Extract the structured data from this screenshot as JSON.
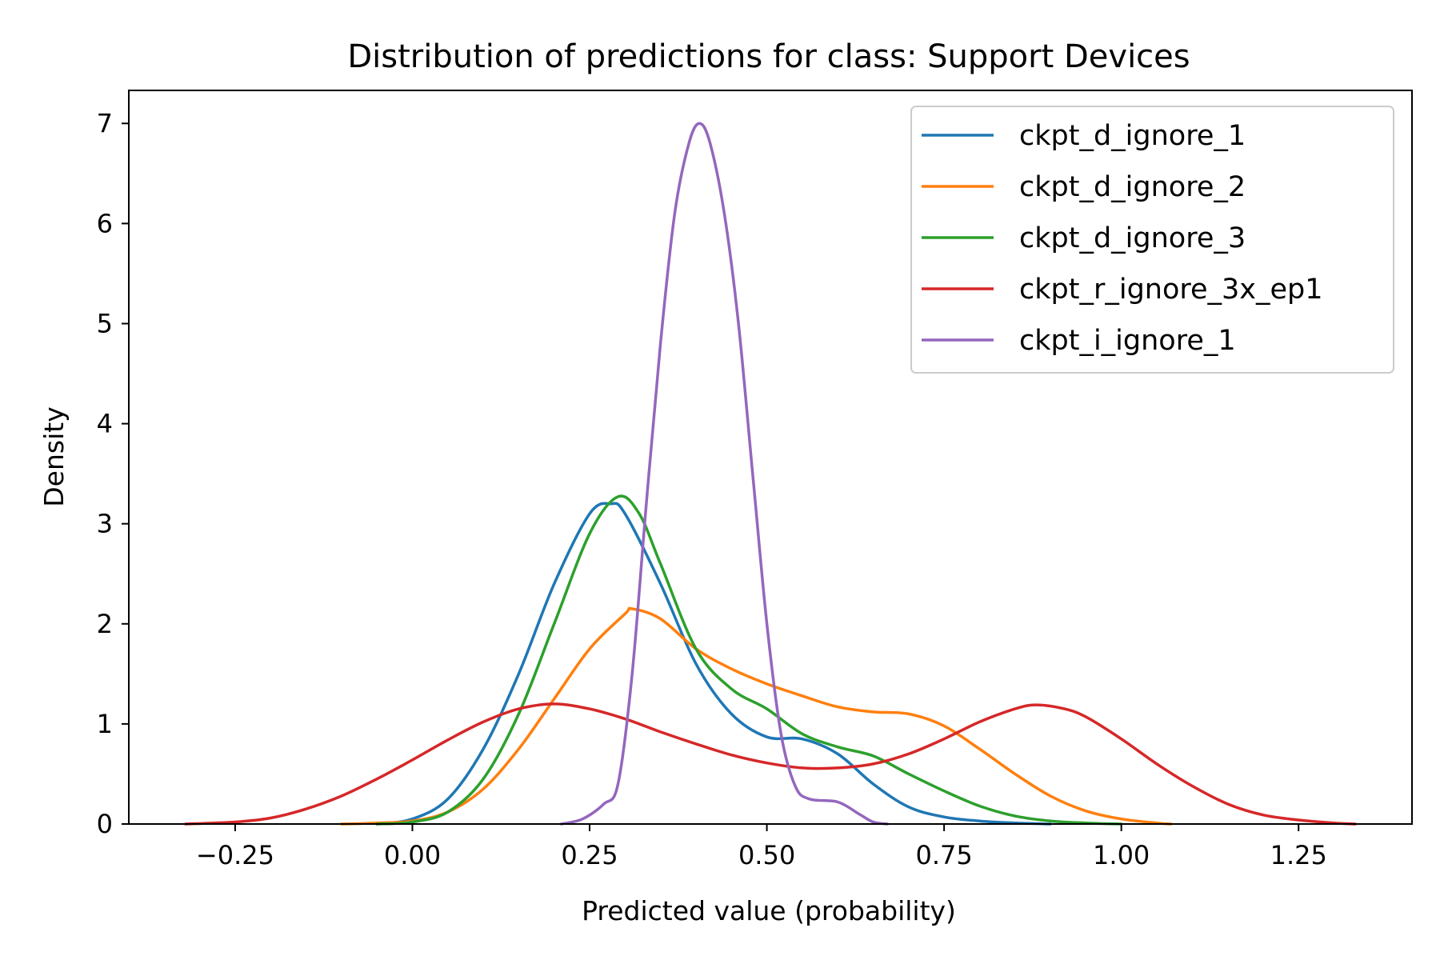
{
  "chart_data": {
    "type": "line",
    "title": "Distribution of predictions for class: Support Devices",
    "xlabel": "Predicted value (probability)",
    "ylabel": "Density",
    "xlim": [
      -0.4,
      1.41
    ],
    "ylim": [
      0,
      7.33
    ],
    "xticks": [
      -0.25,
      0.0,
      0.25,
      0.5,
      0.75,
      1.0,
      1.25
    ],
    "xtick_labels": [
      "−0.25",
      "0.00",
      "0.25",
      "0.50",
      "0.75",
      "1.00",
      "1.25"
    ],
    "yticks": [
      0,
      1,
      2,
      3,
      4,
      5,
      6,
      7
    ],
    "ytick_labels": [
      "0",
      "1",
      "2",
      "3",
      "4",
      "5",
      "6",
      "7"
    ],
    "grid": false,
    "legend_position": "top-right",
    "series": [
      {
        "name": "ckpt_d_ignore_1",
        "color": "#1f77b4",
        "points": [
          [
            -0.05,
            0.0
          ],
          [
            0.0,
            0.05
          ],
          [
            0.05,
            0.25
          ],
          [
            0.1,
            0.75
          ],
          [
            0.15,
            1.5
          ],
          [
            0.2,
            2.4
          ],
          [
            0.25,
            3.1
          ],
          [
            0.28,
            3.2
          ],
          [
            0.3,
            3.1
          ],
          [
            0.35,
            2.4
          ],
          [
            0.4,
            1.6
          ],
          [
            0.45,
            1.1
          ],
          [
            0.5,
            0.87
          ],
          [
            0.55,
            0.85
          ],
          [
            0.6,
            0.7
          ],
          [
            0.65,
            0.4
          ],
          [
            0.7,
            0.17
          ],
          [
            0.75,
            0.07
          ],
          [
            0.8,
            0.03
          ],
          [
            0.85,
            0.01
          ],
          [
            0.9,
            0.0
          ]
        ]
      },
      {
        "name": "ckpt_d_ignore_2",
        "color": "#ff7f0e",
        "points": [
          [
            -0.1,
            0.0
          ],
          [
            -0.05,
            0.01
          ],
          [
            0.0,
            0.03
          ],
          [
            0.05,
            0.12
          ],
          [
            0.1,
            0.35
          ],
          [
            0.15,
            0.75
          ],
          [
            0.2,
            1.25
          ],
          [
            0.25,
            1.75
          ],
          [
            0.3,
            2.1
          ],
          [
            0.31,
            2.15
          ],
          [
            0.35,
            2.05
          ],
          [
            0.4,
            1.75
          ],
          [
            0.45,
            1.55
          ],
          [
            0.5,
            1.4
          ],
          [
            0.55,
            1.28
          ],
          [
            0.6,
            1.17
          ],
          [
            0.65,
            1.12
          ],
          [
            0.7,
            1.1
          ],
          [
            0.75,
            0.98
          ],
          [
            0.8,
            0.75
          ],
          [
            0.85,
            0.5
          ],
          [
            0.9,
            0.28
          ],
          [
            0.95,
            0.13
          ],
          [
            1.0,
            0.05
          ],
          [
            1.05,
            0.01
          ],
          [
            1.07,
            0.0
          ]
        ]
      },
      {
        "name": "ckpt_d_ignore_3",
        "color": "#2ca02c",
        "points": [
          [
            -0.05,
            0.0
          ],
          [
            0.0,
            0.02
          ],
          [
            0.05,
            0.12
          ],
          [
            0.1,
            0.45
          ],
          [
            0.15,
            1.1
          ],
          [
            0.2,
            2.0
          ],
          [
            0.25,
            2.9
          ],
          [
            0.29,
            3.27
          ],
          [
            0.32,
            3.1
          ],
          [
            0.35,
            2.6
          ],
          [
            0.4,
            1.75
          ],
          [
            0.45,
            1.35
          ],
          [
            0.5,
            1.15
          ],
          [
            0.55,
            0.9
          ],
          [
            0.6,
            0.77
          ],
          [
            0.65,
            0.68
          ],
          [
            0.7,
            0.5
          ],
          [
            0.75,
            0.33
          ],
          [
            0.8,
            0.18
          ],
          [
            0.85,
            0.08
          ],
          [
            0.9,
            0.03
          ],
          [
            0.95,
            0.01
          ],
          [
            1.0,
            0.0
          ]
        ]
      },
      {
        "name": "ckpt_r_ignore_3x_ep1",
        "color": "#d62728",
        "points": [
          [
            -0.32,
            0.0
          ],
          [
            -0.25,
            0.02
          ],
          [
            -0.2,
            0.06
          ],
          [
            -0.15,
            0.15
          ],
          [
            -0.1,
            0.28
          ],
          [
            -0.05,
            0.45
          ],
          [
            0.0,
            0.64
          ],
          [
            0.05,
            0.84
          ],
          [
            0.1,
            1.02
          ],
          [
            0.15,
            1.15
          ],
          [
            0.2,
            1.2
          ],
          [
            0.25,
            1.15
          ],
          [
            0.3,
            1.05
          ],
          [
            0.35,
            0.92
          ],
          [
            0.4,
            0.8
          ],
          [
            0.45,
            0.69
          ],
          [
            0.5,
            0.61
          ],
          [
            0.55,
            0.56
          ],
          [
            0.6,
            0.56
          ],
          [
            0.65,
            0.6
          ],
          [
            0.7,
            0.7
          ],
          [
            0.75,
            0.85
          ],
          [
            0.8,
            1.02
          ],
          [
            0.85,
            1.15
          ],
          [
            0.88,
            1.19
          ],
          [
            0.92,
            1.15
          ],
          [
            0.95,
            1.07
          ],
          [
            1.0,
            0.85
          ],
          [
            1.05,
            0.6
          ],
          [
            1.1,
            0.38
          ],
          [
            1.15,
            0.2
          ],
          [
            1.2,
            0.09
          ],
          [
            1.25,
            0.04
          ],
          [
            1.3,
            0.01
          ],
          [
            1.33,
            0.0
          ]
        ]
      },
      {
        "name": "ckpt_i_ignore_1",
        "color": "#9467bd",
        "points": [
          [
            0.21,
            0.0
          ],
          [
            0.24,
            0.05
          ],
          [
            0.27,
            0.2
          ],
          [
            0.29,
            0.4
          ],
          [
            0.31,
            1.5
          ],
          [
            0.33,
            3.2
          ],
          [
            0.35,
            4.8
          ],
          [
            0.37,
            6.1
          ],
          [
            0.39,
            6.8
          ],
          [
            0.405,
            7.0
          ],
          [
            0.42,
            6.8
          ],
          [
            0.44,
            6.1
          ],
          [
            0.46,
            5.0
          ],
          [
            0.48,
            3.5
          ],
          [
            0.5,
            2.0
          ],
          [
            0.52,
            0.9
          ],
          [
            0.54,
            0.38
          ],
          [
            0.56,
            0.25
          ],
          [
            0.6,
            0.22
          ],
          [
            0.63,
            0.1
          ],
          [
            0.65,
            0.02
          ],
          [
            0.67,
            0.0
          ]
        ]
      }
    ]
  }
}
